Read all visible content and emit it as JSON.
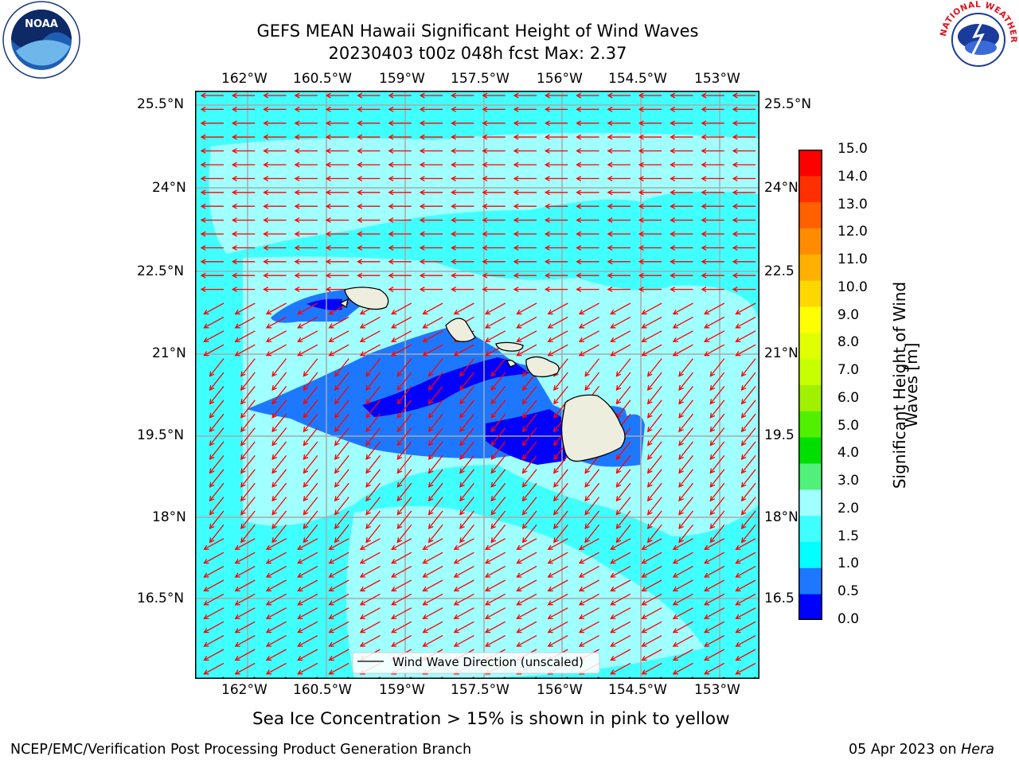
{
  "header": {
    "title_line1": "GEFS MEAN Hawaii Significant Height of Wind Waves",
    "title_line2": "20230403 t00z 048h fcst   Max: 2.37"
  },
  "logos": {
    "left": "NOAA",
    "right": "NATIONAL WEATHER SERVICE"
  },
  "map": {
    "lon_ticks": [
      "162°W",
      "160.5°W",
      "159°W",
      "157.5°W",
      "156°W",
      "154.5°W",
      "153°W"
    ],
    "lat_ticks": [
      "25.5°N",
      "24°N",
      "22.5°N",
      "21°N",
      "19.5°N",
      "18°N",
      "16.5°N"
    ],
    "lat_ticks_right_visible": [
      "25.5°N",
      "24°N",
      "22.5",
      "21°N",
      "19.5",
      "18°N",
      "16.5"
    ],
    "legend_label": "Wind Wave Direction (unscaled)",
    "vector_color": "#ff0000"
  },
  "colorbar": {
    "label": "Significant Height of Wind Waves [m]",
    "label_line1": "Significant Height of Wind",
    "label_line2": "Waves [m]",
    "ticks": [
      "15.0",
      "14.0",
      "13.0",
      "12.0",
      "11.0",
      "10.0",
      "9.0",
      "8.0",
      "7.0",
      "6.0",
      "5.0",
      "4.0",
      "3.0",
      "2.0",
      "1.5",
      "1.0",
      "0.5",
      "0.0"
    ],
    "colors_bottom_to_top": [
      "#0000ff",
      "#1e78ff",
      "#00ffff",
      "#40ffff",
      "#a0ffff",
      "#50f07a",
      "#00e000",
      "#50f000",
      "#a0f000",
      "#c8ff00",
      "#e0ff00",
      "#ffff00",
      "#ffd700",
      "#ffb000",
      "#ff8c00",
      "#ff6000",
      "#ff3000",
      "#ff0000"
    ]
  },
  "footer": {
    "sea_ice_note": "Sea Ice Concentration > 15% is shown in pink to yellow",
    "branch": "NCEP/EMC/Verification Post Processing Product Generation Branch",
    "date": "05 Apr 2023 on ",
    "machine": "Hera"
  }
}
